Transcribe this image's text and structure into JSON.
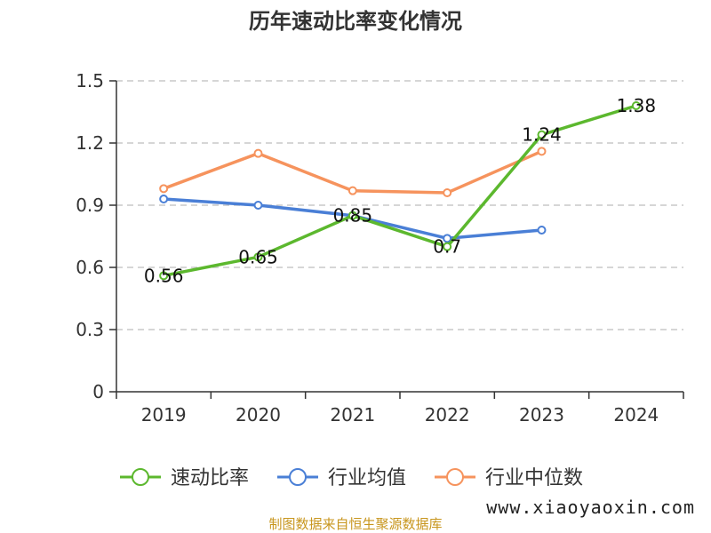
{
  "chart_data": {
    "type": "line",
    "title": "历年速动比率变化情况",
    "categories": [
      "2019",
      "2020",
      "2021",
      "2022",
      "2023",
      "2024"
    ],
    "ylim": [
      0,
      1.5
    ],
    "yticks": [
      0,
      0.3,
      0.6,
      0.9,
      1.2,
      1.5
    ],
    "ytick_labels": [
      "0",
      "0.3",
      "0.6",
      "0.9",
      "1.2",
      "1.5"
    ],
    "grid": true,
    "legend_position": "bottom",
    "series": [
      {
        "name": "速动比率",
        "color": "#5cb82e",
        "values": [
          0.56,
          0.65,
          0.85,
          0.7,
          1.24,
          1.38
        ],
        "labels": [
          "0.56",
          "0.65",
          "0.85",
          "0.7",
          "1.24",
          "1.38"
        ]
      },
      {
        "name": "行业均值",
        "color": "#4a7fd6",
        "values": [
          0.93,
          0.9,
          0.85,
          0.74,
          0.78,
          null
        ]
      },
      {
        "name": "行业中位数",
        "color": "#f6935d",
        "values": [
          0.98,
          1.15,
          0.97,
          0.96,
          1.16,
          null
        ]
      }
    ]
  },
  "footer": {
    "source": "制图数据来自恒生聚源数据库",
    "watermark": "www.xiaoyaoxin.com"
  }
}
